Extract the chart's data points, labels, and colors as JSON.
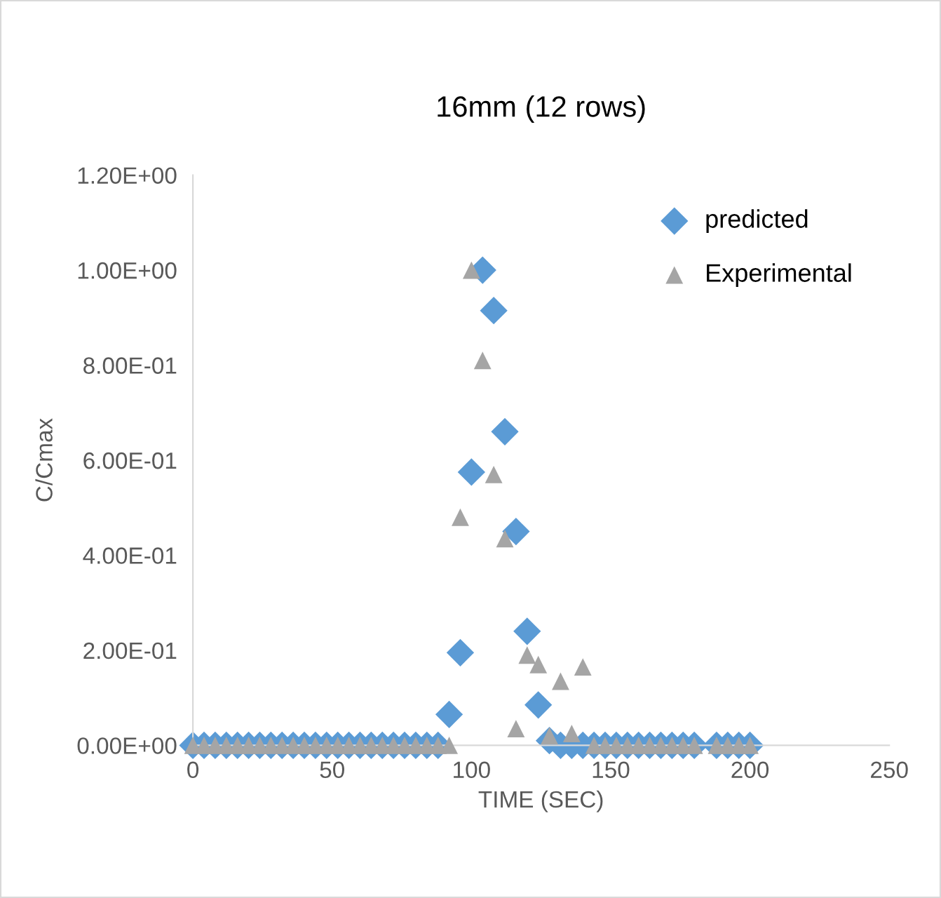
{
  "chart_data": {
    "type": "scatter",
    "title": "16mm (12 rows)",
    "xlabel": "TIME (SEC)",
    "ylabel": "C/Cmax",
    "xlim": [
      0,
      250
    ],
    "xticks": [
      0,
      50,
      100,
      150,
      200,
      250
    ],
    "ylim": [
      0,
      1.2
    ],
    "yticks": [
      {
        "value": 0,
        "label": "0.00E+00"
      },
      {
        "value": 0.2,
        "label": "2.00E-01"
      },
      {
        "value": 0.4,
        "label": "4.00E-01"
      },
      {
        "value": 0.6,
        "label": "6.00E-01"
      },
      {
        "value": 0.8,
        "label": "8.00E-01"
      },
      {
        "value": 1.0,
        "label": "1.00E+00"
      },
      {
        "value": 1.2,
        "label": "1.20E+00"
      }
    ],
    "grid": false,
    "legend": "top right",
    "series": [
      {
        "name": "predicted",
        "color": "#5b9bd5",
        "marker": "diamond",
        "x": [
          0,
          4,
          8,
          12,
          16,
          20,
          24,
          28,
          32,
          36,
          40,
          44,
          48,
          52,
          56,
          60,
          64,
          68,
          72,
          76,
          80,
          84,
          88,
          92,
          96,
          100,
          104,
          108,
          112,
          116,
          120,
          124,
          128,
          132,
          136,
          140,
          144,
          148,
          152,
          156,
          160,
          164,
          168,
          172,
          176,
          180,
          188,
          192,
          196,
          200
        ],
        "values": [
          0,
          0,
          0,
          0,
          0,
          0,
          0,
          0,
          0,
          0,
          0,
          0,
          0,
          0,
          0,
          0,
          0,
          0,
          0,
          0,
          0,
          0,
          0,
          0.065,
          0.195,
          0.575,
          1.0,
          0.915,
          0.66,
          0.45,
          0.24,
          0.085,
          0.01,
          0,
          0,
          0,
          0,
          0,
          0,
          0,
          0,
          0,
          0,
          0,
          0,
          0,
          0,
          0,
          0,
          0
        ]
      },
      {
        "name": "Experimental",
        "color": "#a5a5a5",
        "marker": "triangle",
        "x": [
          0,
          4,
          8,
          12,
          16,
          20,
          24,
          28,
          32,
          36,
          40,
          44,
          48,
          52,
          56,
          60,
          64,
          68,
          72,
          76,
          80,
          84,
          88,
          92,
          96,
          100,
          104,
          108,
          112,
          116,
          120,
          124,
          128,
          132,
          136,
          140,
          144,
          148,
          152,
          156,
          160,
          164,
          168,
          172,
          176,
          180,
          188,
          192,
          196,
          200
        ],
        "values": [
          0,
          0,
          0,
          0,
          0,
          0,
          0,
          0,
          0,
          0,
          0,
          0,
          0,
          0,
          0,
          0,
          0,
          0,
          0,
          0,
          0,
          0,
          0,
          0,
          0.48,
          1.0,
          0.81,
          0.57,
          0.435,
          0.035,
          0.19,
          0.17,
          0.02,
          0.135,
          0.025,
          0.165,
          0,
          0,
          0,
          0,
          0,
          0,
          0,
          0,
          0,
          0,
          0,
          0,
          0,
          0
        ]
      }
    ]
  }
}
